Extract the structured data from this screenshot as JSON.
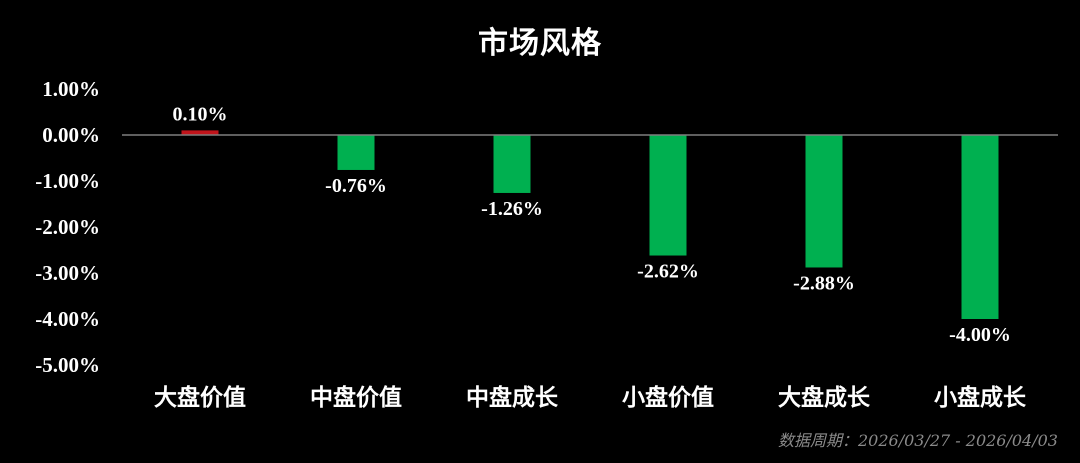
{
  "chart_data": {
    "type": "bar",
    "title": "市场风格",
    "categories": [
      "大盘价值",
      "中盘价值",
      "中盘成长",
      "小盘价值",
      "大盘成长",
      "小盘成长"
    ],
    "values": [
      0.1,
      -0.76,
      -1.26,
      -2.62,
      -2.88,
      -4.0
    ],
    "data_labels": [
      "0.10%",
      "-0.76%",
      "-1.26%",
      "-2.62%",
      "-2.88%",
      "-4.00%"
    ],
    "ylim": [
      -5,
      1
    ],
    "yticks": [
      1,
      0,
      -1,
      -2,
      -3,
      -4,
      -5
    ],
    "ytick_labels": [
      "1.00%",
      "0.00%",
      "-1.00%",
      "-2.00%",
      "-3.00%",
      "-4.00%",
      "-5.00%"
    ],
    "xlabel": "",
    "ylabel": "",
    "grid": false,
    "colors": {
      "positive": "#c0141b",
      "negative": "#00b050",
      "background": "#000000",
      "text": "#ffffff",
      "zero_line": "#7f7f7f"
    }
  },
  "footnote": "数据周期：2026/03/27 - 2026/04/03"
}
